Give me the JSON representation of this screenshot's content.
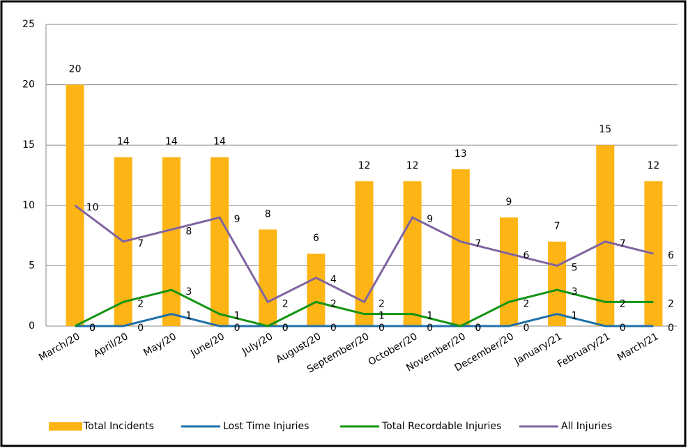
{
  "chart_data": {
    "type": "bar-line",
    "categories": [
      "March/20",
      "April/20",
      "May/20",
      "June/20",
      "July/20",
      "August/20",
      "September/20",
      "October/20",
      "November/20",
      "December/20",
      "January/21",
      "February/21",
      "March/21"
    ],
    "series": [
      {
        "name": "Total Incidents",
        "type": "bar",
        "color": "#FDB515",
        "values": [
          20,
          14,
          14,
          14,
          8,
          6,
          12,
          12,
          13,
          9,
          7,
          15,
          12
        ]
      },
      {
        "name": "Lost Time Injuries",
        "type": "line",
        "color": "#1F6FA8",
        "values": [
          0,
          0,
          1,
          0,
          0,
          0,
          0,
          0,
          0,
          0,
          1,
          0,
          0
        ]
      },
      {
        "name": "Total Recordable Injuries",
        "type": "line",
        "color": "#149414",
        "values": [
          0,
          2,
          3,
          1,
          0,
          2,
          1,
          1,
          0,
          2,
          3,
          2,
          2
        ]
      },
      {
        "name": "All Injuries",
        "type": "line",
        "color": "#8064A2",
        "values": [
          10,
          7,
          8,
          9,
          2,
          4,
          2,
          9,
          7,
          6,
          5,
          7,
          6
        ]
      }
    ],
    "ylim": [
      0,
      25
    ],
    "yticks": [
      0,
      5,
      10,
      15,
      20,
      25
    ],
    "grid": true,
    "legend": "bottom"
  }
}
